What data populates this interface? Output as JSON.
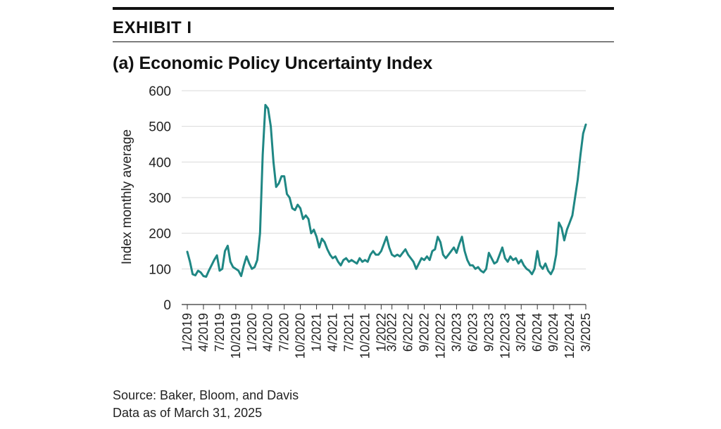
{
  "header": {
    "exhibit": "EXHIBIT I"
  },
  "colors": {
    "series": "#1f8784",
    "grid": "#d9d9d9",
    "axis": "#333333",
    "text": "#111111"
  },
  "chart_data": {
    "type": "line",
    "title": "(a) Economic Policy Uncertainty Index",
    "xlabel": "",
    "ylabel": "Index monthly average",
    "ylim": [
      0,
      600
    ],
    "yticks": [
      0,
      100,
      200,
      300,
      400,
      500,
      600
    ],
    "grid": true,
    "xtick_labels": [
      "1/2019",
      "4/2019",
      "7/2019",
      "10/2019",
      "1/2020",
      "4/2020",
      "7/2020",
      "10/2020",
      "1/2021",
      "4/2021",
      "7/2021",
      "10/2021",
      "1/2022",
      "3/2022",
      "6/2022",
      "9/2022",
      "12/2022",
      "3/2023",
      "6/2023",
      "9/2023",
      "12/2023",
      "3/2024",
      "6/2024",
      "9/2024",
      "12/2024",
      "3/2025"
    ],
    "xtick_positions": [
      0,
      3,
      6,
      9,
      12,
      15,
      18,
      21,
      24,
      27,
      30,
      33,
      36,
      38,
      41,
      44,
      47,
      50,
      53,
      56,
      59,
      62,
      65,
      68,
      71,
      74
    ],
    "x_max": 74,
    "series": [
      {
        "name": "Economic Policy Uncertainty Index",
        "points": [
          [
            0,
            148
          ],
          [
            0.5,
            120
          ],
          [
            1,
            85
          ],
          [
            1.5,
            82
          ],
          [
            2,
            95
          ],
          [
            2.5,
            90
          ],
          [
            3,
            80
          ],
          [
            3.5,
            78
          ],
          [
            4,
            95
          ],
          [
            4.5,
            110
          ],
          [
            5,
            125
          ],
          [
            5.5,
            138
          ],
          [
            6,
            95
          ],
          [
            6.5,
            100
          ],
          [
            7,
            150
          ],
          [
            7.5,
            165
          ],
          [
            8,
            120
          ],
          [
            8.5,
            105
          ],
          [
            9,
            100
          ],
          [
            9.5,
            95
          ],
          [
            10,
            80
          ],
          [
            10.5,
            110
          ],
          [
            11,
            135
          ],
          [
            11.5,
            115
          ],
          [
            12,
            100
          ],
          [
            12.5,
            105
          ],
          [
            13,
            125
          ],
          [
            13.5,
            200
          ],
          [
            14,
            420
          ],
          [
            14.5,
            560
          ],
          [
            15,
            550
          ],
          [
            15.5,
            500
          ],
          [
            16,
            400
          ],
          [
            16.5,
            330
          ],
          [
            17,
            340
          ],
          [
            17.5,
            360
          ],
          [
            18,
            360
          ],
          [
            18.5,
            310
          ],
          [
            19,
            300
          ],
          [
            19.5,
            270
          ],
          [
            20,
            265
          ],
          [
            20.5,
            280
          ],
          [
            21,
            270
          ],
          [
            21.5,
            240
          ],
          [
            22,
            250
          ],
          [
            22.5,
            240
          ],
          [
            23,
            200
          ],
          [
            23.5,
            210
          ],
          [
            24,
            190
          ],
          [
            24.5,
            160
          ],
          [
            25,
            185
          ],
          [
            25.5,
            175
          ],
          [
            26,
            155
          ],
          [
            26.5,
            140
          ],
          [
            27,
            130
          ],
          [
            27.5,
            135
          ],
          [
            28,
            120
          ],
          [
            28.5,
            110
          ],
          [
            29,
            125
          ],
          [
            29.5,
            130
          ],
          [
            30,
            120
          ],
          [
            30.5,
            125
          ],
          [
            31,
            120
          ],
          [
            31.5,
            115
          ],
          [
            32,
            130
          ],
          [
            32.5,
            120
          ],
          [
            33,
            125
          ],
          [
            33.5,
            120
          ],
          [
            34,
            140
          ],
          [
            34.5,
            150
          ],
          [
            35,
            140
          ],
          [
            35.5,
            140
          ],
          [
            36,
            150
          ],
          [
            36.5,
            170
          ],
          [
            37,
            190
          ],
          [
            37.5,
            160
          ],
          [
            38,
            140
          ],
          [
            38.5,
            135
          ],
          [
            39,
            140
          ],
          [
            39.5,
            135
          ],
          [
            40,
            145
          ],
          [
            40.5,
            155
          ],
          [
            41,
            140
          ],
          [
            41.5,
            130
          ],
          [
            42,
            120
          ],
          [
            42.5,
            100
          ],
          [
            43,
            115
          ],
          [
            43.5,
            130
          ],
          [
            44,
            125
          ],
          [
            44.5,
            135
          ],
          [
            45,
            125
          ],
          [
            45.5,
            150
          ],
          [
            46,
            155
          ],
          [
            46.5,
            190
          ],
          [
            47,
            175
          ],
          [
            47.5,
            140
          ],
          [
            48,
            130
          ],
          [
            48.5,
            140
          ],
          [
            49,
            150
          ],
          [
            49.5,
            160
          ],
          [
            50,
            145
          ],
          [
            50.5,
            170
          ],
          [
            51,
            190
          ],
          [
            51.5,
            150
          ],
          [
            52,
            125
          ],
          [
            52.5,
            110
          ],
          [
            53,
            110
          ],
          [
            53.5,
            100
          ],
          [
            54,
            105
          ],
          [
            54.5,
            95
          ],
          [
            55,
            90
          ],
          [
            55.5,
            100
          ],
          [
            56,
            145
          ],
          [
            56.5,
            130
          ],
          [
            57,
            115
          ],
          [
            57.5,
            120
          ],
          [
            58,
            140
          ],
          [
            58.5,
            160
          ],
          [
            59,
            130
          ],
          [
            59.5,
            120
          ],
          [
            60,
            135
          ],
          [
            60.5,
            125
          ],
          [
            61,
            130
          ],
          [
            61.5,
            115
          ],
          [
            62,
            125
          ],
          [
            62.5,
            110
          ],
          [
            63,
            100
          ],
          [
            63.5,
            95
          ],
          [
            64,
            85
          ],
          [
            64.5,
            100
          ],
          [
            65,
            150
          ],
          [
            65.5,
            110
          ],
          [
            66,
            100
          ],
          [
            66.5,
            115
          ],
          [
            67,
            95
          ],
          [
            67.5,
            85
          ],
          [
            68,
            100
          ],
          [
            68.5,
            140
          ],
          [
            69,
            230
          ],
          [
            69.5,
            215
          ],
          [
            70,
            180
          ],
          [
            70.5,
            210
          ],
          [
            71,
            230
          ],
          [
            71.5,
            250
          ],
          [
            72,
            300
          ],
          [
            72.5,
            350
          ],
          [
            73,
            420
          ],
          [
            73.5,
            480
          ],
          [
            74,
            505
          ]
        ]
      }
    ]
  },
  "source": {
    "line1": "Source: Baker, Bloom, and Davis",
    "line2": "Data as of March 31, 2025"
  }
}
